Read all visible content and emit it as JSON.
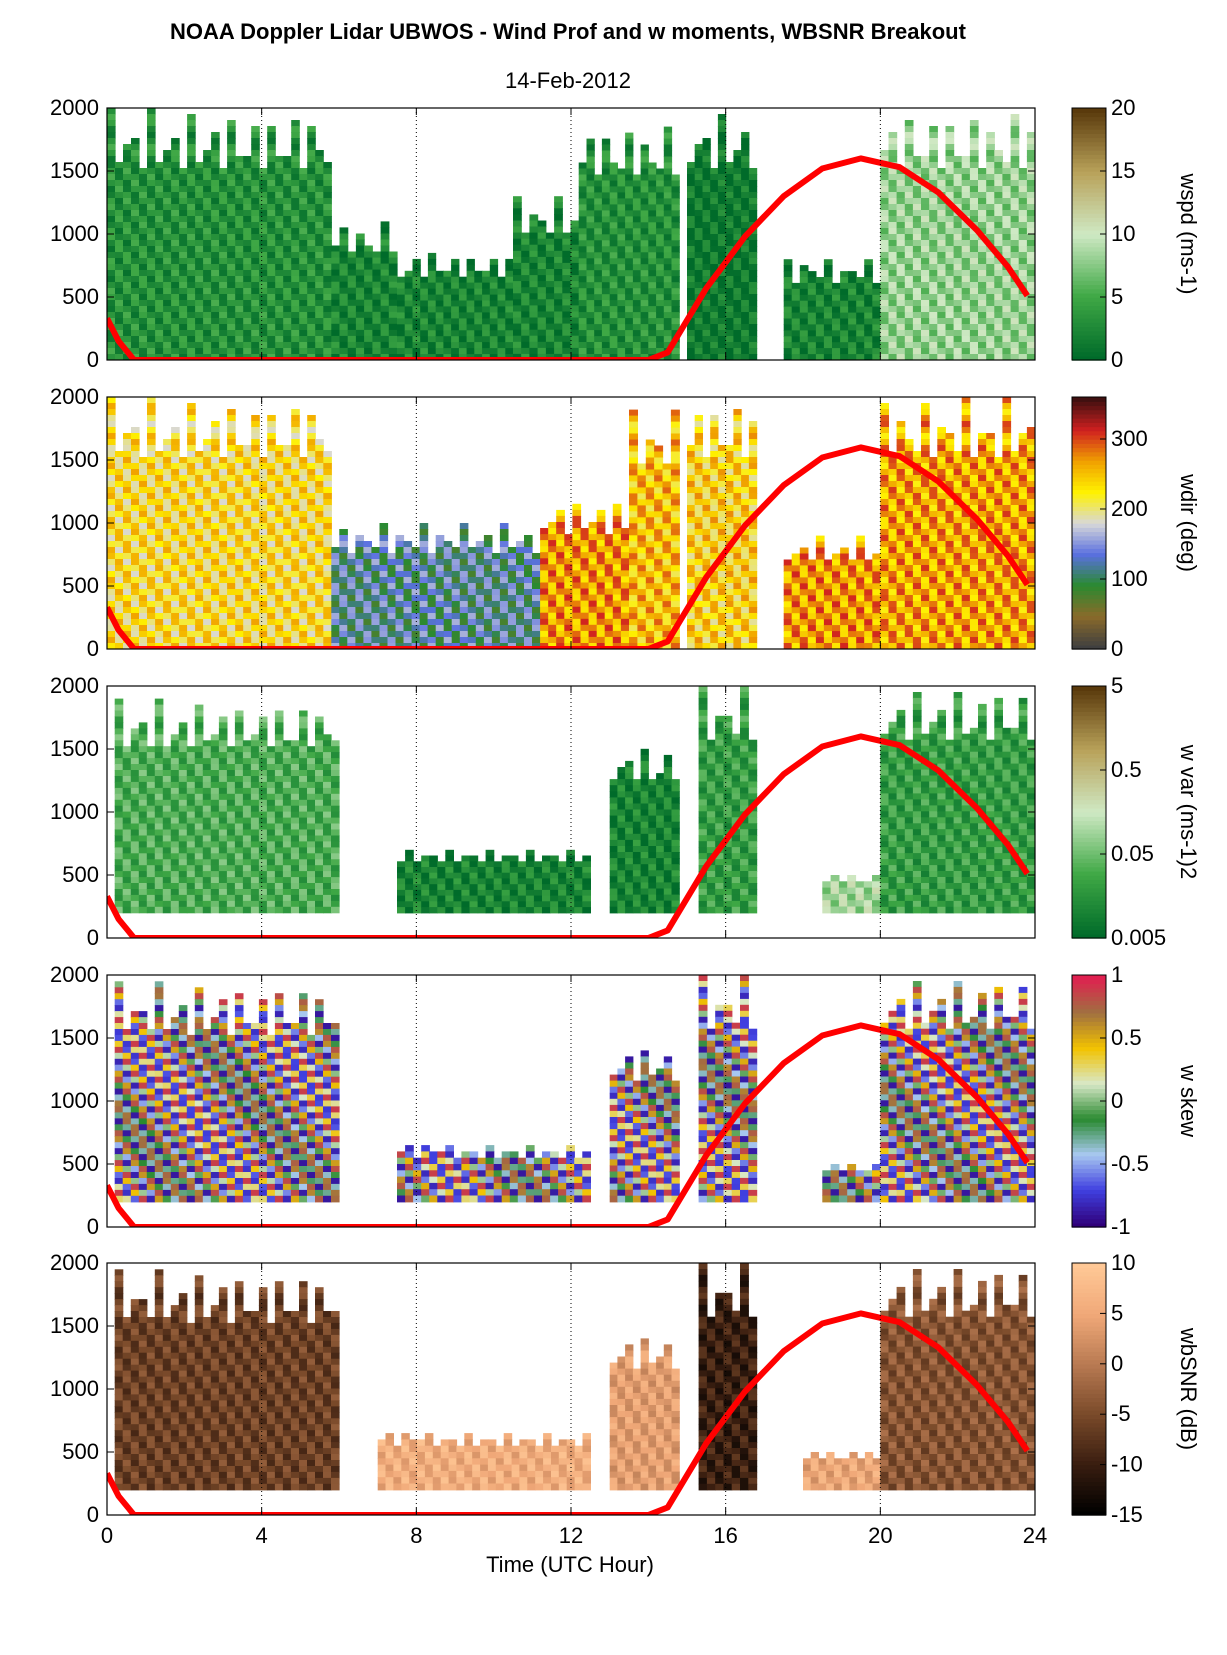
{
  "figure": {
    "title": "NOAA Doppler Lidar UBWOS - Wind Prof and w moments, WBSNR Breakout",
    "date": "14-Feb-2012",
    "xlabel": "Time (UTC Hour)",
    "x_ticks": [
      "0",
      "4",
      "8",
      "12",
      "16",
      "20",
      "24"
    ],
    "y_ticks": [
      "0",
      "500",
      "1000",
      "1500",
      "2000"
    ]
  },
  "chart_data": [
    {
      "type": "heatmap",
      "name": "wspd",
      "colorbar_label": "wspd (ms-1)",
      "colorbar_ticks": [
        "0",
        "5",
        "10",
        "15",
        "20"
      ],
      "clim": [
        0,
        20
      ],
      "colors": [
        "#006b2a",
        "#3fa845",
        "#cfe9c4",
        "#b9a25a",
        "#5a3a0c"
      ],
      "xlim": [
        0,
        24
      ],
      "ylim": [
        0,
        2000
      ],
      "grid": "dotted vertical at 4, 8, 12, 16, 20",
      "data_segments": [
        {
          "x": [
            0,
            5.8
          ],
          "top": 2000,
          "value": 3
        },
        {
          "x": [
            5.8,
            7.5
          ],
          "top": 1100,
          "value": 2
        },
        {
          "x": [
            7.5,
            10.5
          ],
          "top": 850,
          "value": 2
        },
        {
          "x": [
            10.5,
            12.2
          ],
          "top": 1300,
          "value": 2
        },
        {
          "x": [
            12.2,
            14.8
          ],
          "top": 1900,
          "value": 3
        },
        {
          "x": [
            15.0,
            16.8
          ],
          "top": 2000,
          "value": 1
        },
        {
          "x": [
            17.5,
            20.0
          ],
          "top": 800,
          "value": 2
        },
        {
          "x": [
            20.0,
            24.0
          ],
          "top": 2000,
          "value": 8
        }
      ]
    },
    {
      "type": "heatmap",
      "name": "wdir",
      "colorbar_label": "wdir (deg)",
      "colorbar_ticks": [
        "0",
        "100",
        "200",
        "300"
      ],
      "clim": [
        0,
        360
      ],
      "colors": [
        "#404040",
        "#8a6a2a",
        "#2a8a30",
        "#5a70e0",
        "#d8d8d8",
        "#fff200",
        "#f0a000",
        "#d02020",
        "#401010"
      ],
      "xlim": [
        0,
        24
      ],
      "ylim": [
        0,
        2000
      ],
      "data_segments": [
        {
          "x": [
            0,
            5.8
          ],
          "top": 2000,
          "value": 225
        },
        {
          "x": [
            5.8,
            11.2
          ],
          "top": 1000,
          "value": 120
        },
        {
          "x": [
            11.2,
            13.5
          ],
          "top": 1200,
          "value": 270
        },
        {
          "x": [
            13.5,
            14.8
          ],
          "top": 1900,
          "value": 250
        },
        {
          "x": [
            15.0,
            16.8
          ],
          "top": 2000,
          "value": 235
        },
        {
          "x": [
            17.5,
            20.0
          ],
          "top": 900,
          "value": 270
        },
        {
          "x": [
            20.0,
            24.0
          ],
          "top": 2000,
          "value": 265
        }
      ]
    },
    {
      "type": "heatmap",
      "name": "w var",
      "colorbar_label": "w var (ms-1)2",
      "colorbar_ticks": [
        "0.005",
        "0.05",
        "0.5",
        "5"
      ],
      "clim": [
        0.005,
        5
      ],
      "scale": "log",
      "colors": [
        "#006b2a",
        "#3fa845",
        "#cfe9c4",
        "#b9a25a",
        "#5a3a0c"
      ],
      "xlim": [
        0,
        24
      ],
      "ylim": [
        0,
        2000
      ],
      "data_segments": [
        {
          "x": [
            0.2,
            6.0
          ],
          "top": 1900,
          "value": 0.03
        },
        {
          "x": [
            7.5,
            12.5
          ],
          "top": 700,
          "value": 0.01
        },
        {
          "x": [
            13.0,
            14.8
          ],
          "top": 1550,
          "value": 0.01
        },
        {
          "x": [
            15.3,
            16.8
          ],
          "top": 2000,
          "value": 0.02
        },
        {
          "x": [
            18.5,
            20.0
          ],
          "top": 500,
          "value": 0.1
        },
        {
          "x": [
            20.0,
            24.0
          ],
          "top": 2000,
          "value": 0.02
        }
      ]
    },
    {
      "type": "heatmap",
      "name": "w skew",
      "colorbar_label": "w skew",
      "colorbar_ticks": [
        "-1",
        "-0.5",
        "0",
        "0.5",
        "1"
      ],
      "clim": [
        -1,
        1
      ],
      "colors": [
        "#30007a",
        "#4040e0",
        "#a8c8f0",
        "#2a8a30",
        "#d8e8c8",
        "#f2c200",
        "#a07040",
        "#e02050"
      ],
      "xlim": [
        0,
        24
      ],
      "ylim": [
        0,
        2000
      ],
      "data_segments": [
        {
          "x": [
            0.2,
            6.0
          ],
          "top": 1950,
          "value": 0
        },
        {
          "x": [
            7.5,
            12.5
          ],
          "top": 650,
          "value": 0
        },
        {
          "x": [
            13.0,
            14.8
          ],
          "top": 1450,
          "value": 0
        },
        {
          "x": [
            15.3,
            16.8
          ],
          "top": 2000,
          "value": 0
        },
        {
          "x": [
            18.5,
            20.0
          ],
          "top": 500,
          "value": 0
        },
        {
          "x": [
            20.0,
            24.0
          ],
          "top": 2000,
          "value": 0
        }
      ]
    },
    {
      "type": "heatmap",
      "name": "wbSNR",
      "colorbar_label": "wbSNR (dB)",
      "colorbar_ticks": [
        "-15",
        "-10",
        "-5",
        "0",
        "5",
        "10"
      ],
      "clim": [
        -15,
        10
      ],
      "colors": [
        "#000000",
        "#3a1e10",
        "#7a4a2a",
        "#b87a52",
        "#f0a878",
        "#ffc896"
      ],
      "xlim": [
        0,
        24
      ],
      "ylim": [
        0,
        2000
      ],
      "data_segments": [
        {
          "x": [
            0.2,
            6.0
          ],
          "top": 1950,
          "value": -6
        },
        {
          "x": [
            7.0,
            12.5
          ],
          "top": 650,
          "value": 6
        },
        {
          "x": [
            13.0,
            14.8
          ],
          "top": 1450,
          "value": 4
        },
        {
          "x": [
            15.3,
            16.8
          ],
          "top": 2000,
          "value": -10
        },
        {
          "x": [
            18.0,
            20.0
          ],
          "top": 500,
          "value": 5
        },
        {
          "x": [
            20.0,
            24.0
          ],
          "top": 2000,
          "value": -4
        }
      ]
    }
  ],
  "overlay_series": {
    "type": "line",
    "color": "#ff0000",
    "x": [
      0,
      0.3,
      0.7,
      14.0,
      14.5,
      15.5,
      16.5,
      17.5,
      18.5,
      19.5,
      20.5,
      21.5,
      22.5,
      23.3,
      23.8
    ],
    "y": [
      330,
      150,
      0,
      0,
      60,
      570,
      980,
      1300,
      1520,
      1600,
      1530,
      1330,
      1030,
      740,
      510
    ]
  }
}
